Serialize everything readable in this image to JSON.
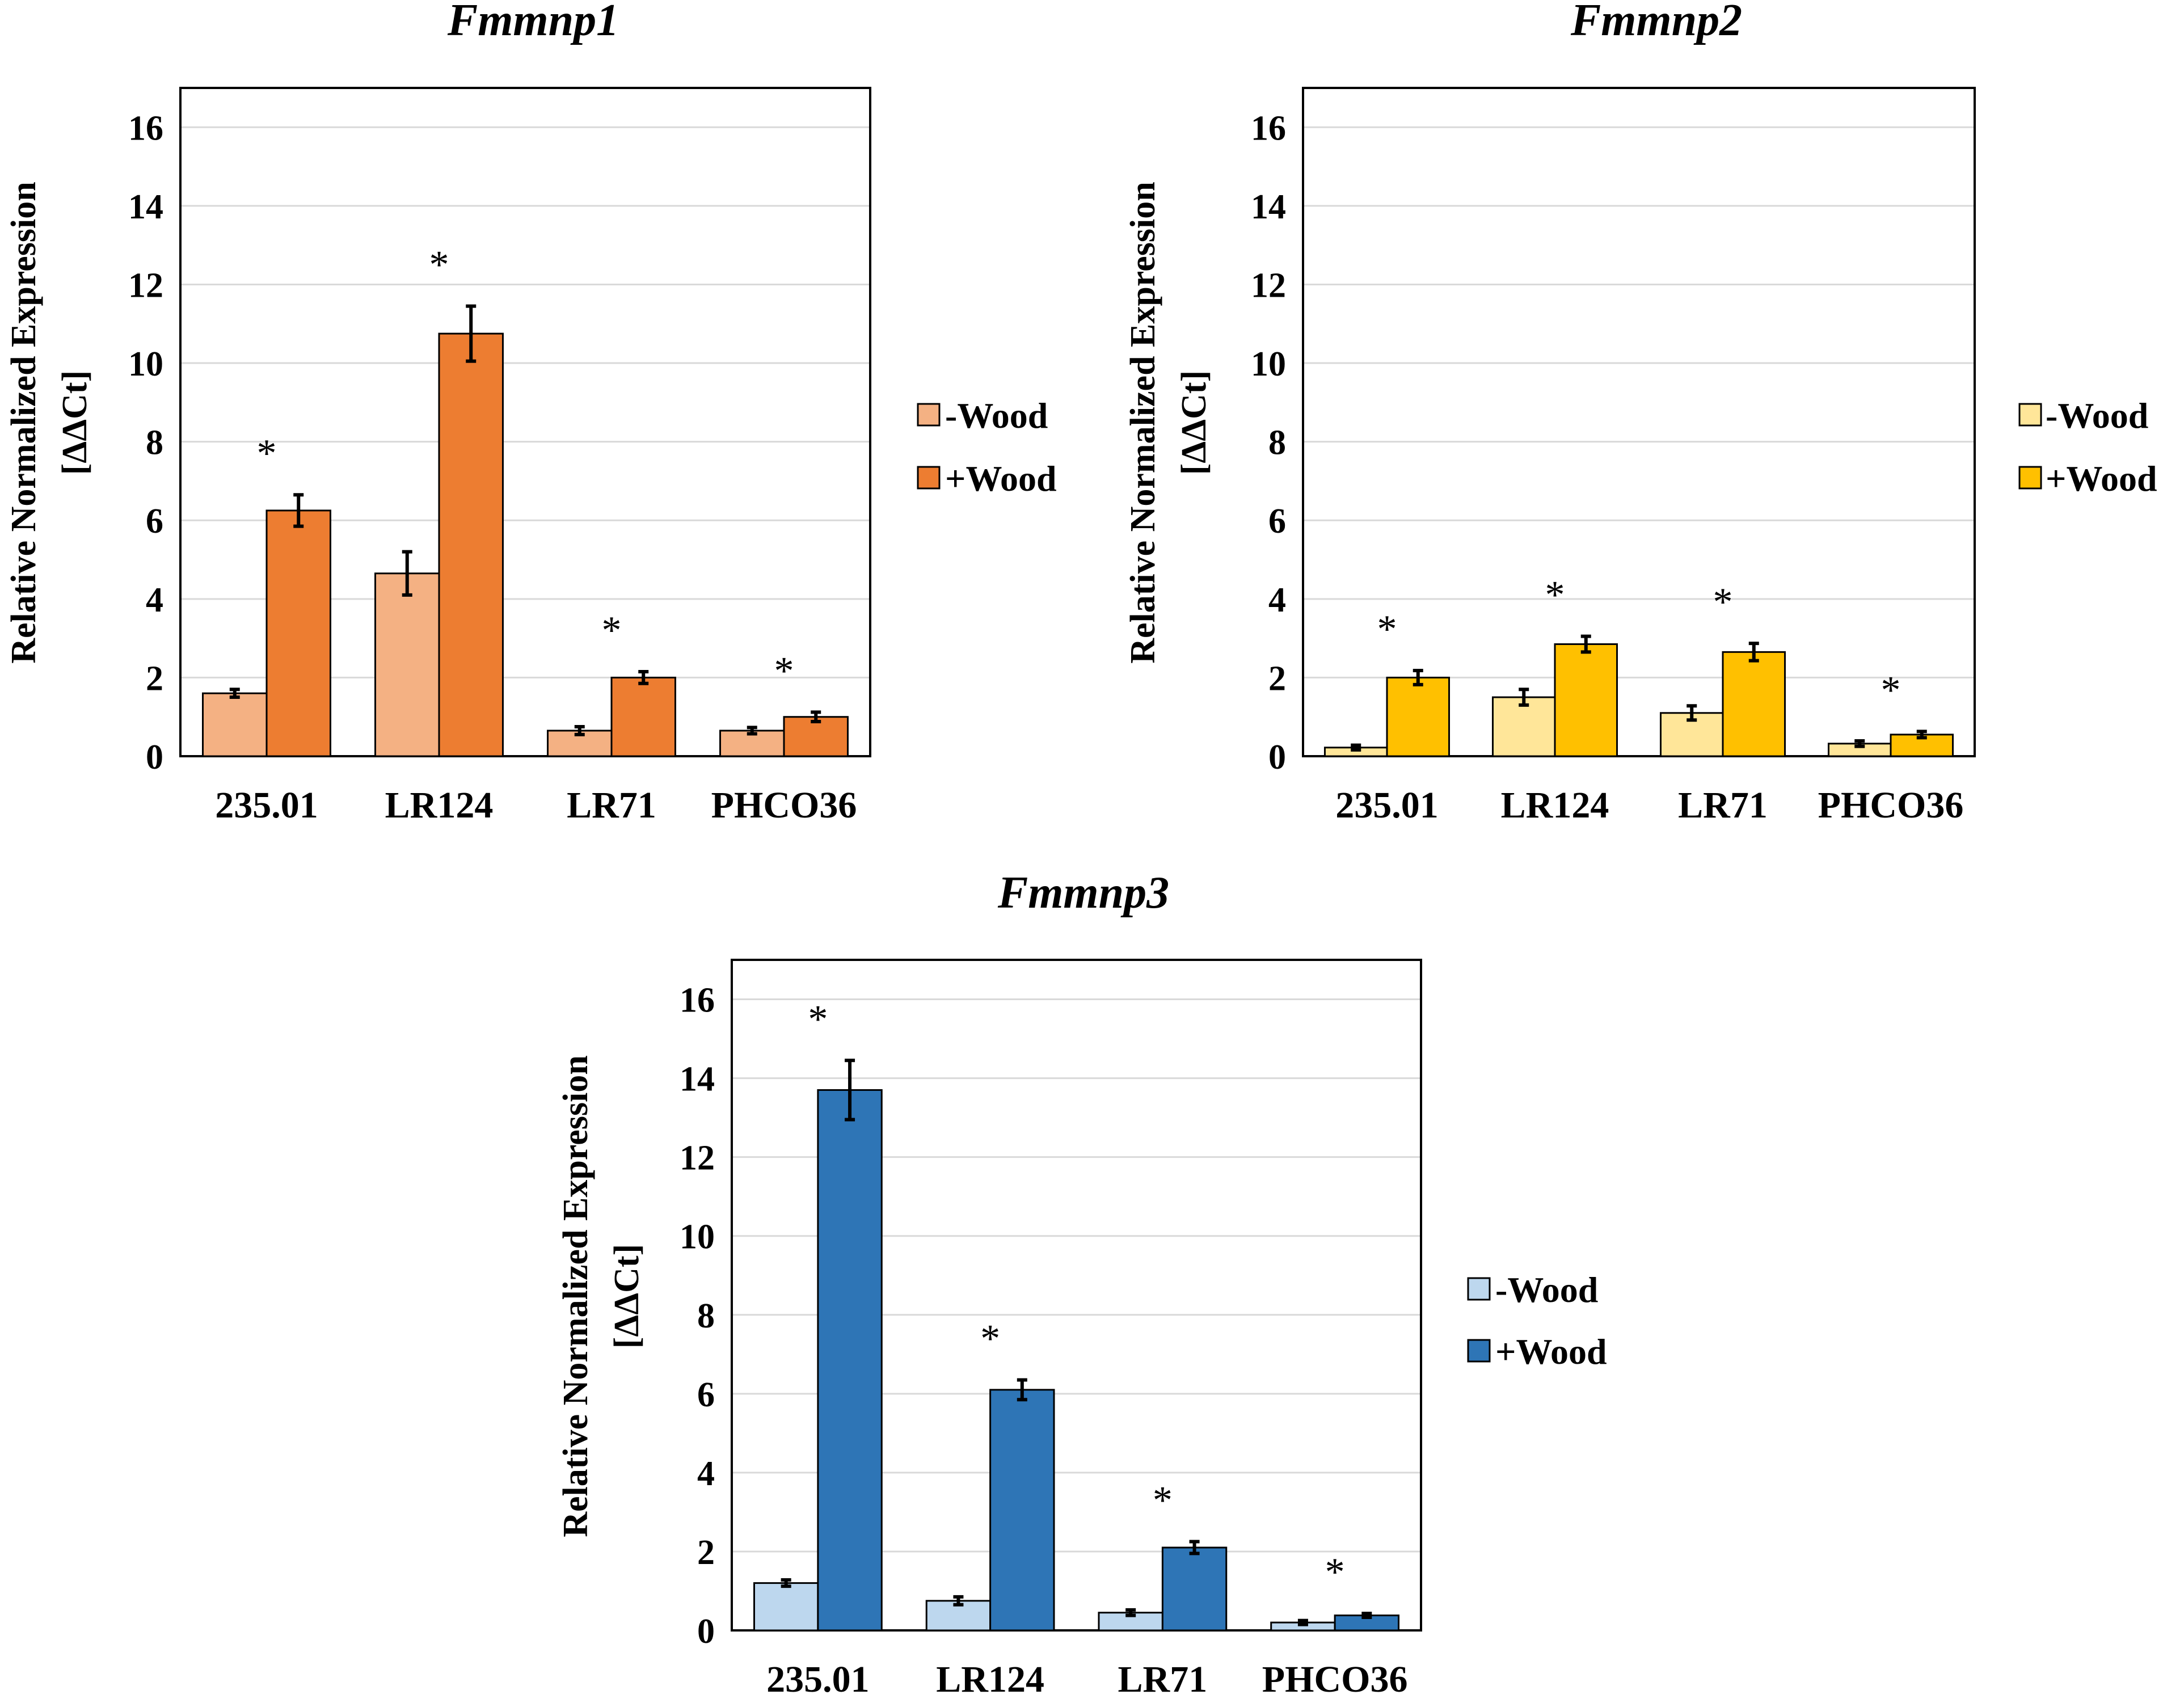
{
  "chart_data": [
    {
      "type": "bar",
      "title": "Fmmnp1",
      "ylabel_line1": "Relative Normalized  Expression",
      "ylabel_line2": "[ΔΔCt]",
      "ylim": [
        0,
        17
      ],
      "yticks": [
        "0",
        "2",
        "4",
        "6",
        "8",
        "10",
        "12",
        "14",
        "16"
      ],
      "grid": true,
      "legend_position": "right",
      "categories": [
        "235.01",
        "LR124",
        "LR71",
        "PHCO36"
      ],
      "series": [
        {
          "name": "-Wood",
          "color": "#F4B183",
          "values": [
            1.6,
            4.65,
            0.65,
            0.65
          ],
          "errors": [
            0.1,
            0.55,
            0.1,
            0.08
          ]
        },
        {
          "name": "+Wood",
          "color": "#ED7D31",
          "values": [
            6.25,
            10.75,
            2.0,
            1.0
          ],
          "errors": [
            0.4,
            0.7,
            0.15,
            0.12
          ]
        }
      ],
      "annotations": [
        "*",
        "*",
        "*",
        "*"
      ]
    },
    {
      "type": "bar",
      "title": "Fmmnp2",
      "ylabel_line1": "Relative Normalized  Expression",
      "ylabel_line2": "[ΔΔCt]",
      "ylim": [
        0,
        17
      ],
      "yticks": [
        "0",
        "2",
        "4",
        "6",
        "8",
        "10",
        "12",
        "14",
        "16"
      ],
      "grid": true,
      "legend_position": "right",
      "categories": [
        "235.01",
        "LR124",
        "LR71",
        "PHCO36"
      ],
      "series": [
        {
          "name": "-Wood",
          "color": "#FFE699",
          "values": [
            0.22,
            1.5,
            1.1,
            0.32
          ],
          "errors": [
            0.06,
            0.2,
            0.18,
            0.07
          ]
        },
        {
          "name": "+Wood",
          "color": "#FFC000",
          "values": [
            2.0,
            2.85,
            2.65,
            0.55
          ],
          "errors": [
            0.18,
            0.2,
            0.22,
            0.08
          ]
        }
      ],
      "annotations": [
        "*",
        "*",
        "*",
        "*"
      ]
    },
    {
      "type": "bar",
      "title": "Fmmnp3",
      "ylabel_line1": "Relative Normalized  Expression",
      "ylabel_line2": "[ΔΔCt]",
      "ylim": [
        0,
        17
      ],
      "yticks": [
        "0",
        "2",
        "4",
        "6",
        "8",
        "10",
        "12",
        "14",
        "16"
      ],
      "grid": true,
      "legend_position": "right",
      "categories": [
        "235.01",
        "LR124",
        "LR71",
        "PHCO36"
      ],
      "series": [
        {
          "name": "-Wood",
          "color": "#BDD7EE",
          "values": [
            1.2,
            0.75,
            0.45,
            0.2
          ],
          "errors": [
            0.08,
            0.1,
            0.07,
            0.05
          ]
        },
        {
          "name": "+Wood",
          "color": "#2E75B6",
          "values": [
            13.7,
            6.1,
            2.1,
            0.38
          ],
          "errors": [
            0.75,
            0.25,
            0.15,
            0.05
          ]
        }
      ],
      "annotations": [
        "*",
        "*",
        "*",
        "*"
      ]
    }
  ]
}
